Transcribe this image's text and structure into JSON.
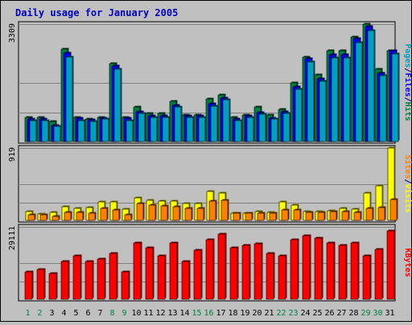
{
  "chart_data": {
    "type": "bar",
    "title": "Daily usage for January 2005",
    "categories": [
      "1",
      "2",
      "3",
      "4",
      "5",
      "6",
      "7",
      "8",
      "9",
      "10",
      "11",
      "12",
      "13",
      "14",
      "15",
      "16",
      "17",
      "18",
      "19",
      "20",
      "21",
      "22",
      "23",
      "24",
      "25",
      "26",
      "27",
      "28",
      "29",
      "30",
      "31"
    ],
    "weekend_days": [
      "1",
      "2",
      "8",
      "9",
      "15",
      "16",
      "22",
      "23",
      "29",
      "30"
    ],
    "panels": [
      {
        "id": "top",
        "ymax_label": "3309",
        "ylim": [
          0,
          3309
        ],
        "axis_labels": [
          {
            "text": "Pages",
            "color": "#00a0c0"
          },
          {
            "text": "/",
            "color": "#000080"
          },
          {
            "text": "Files",
            "color": "#0000ff"
          },
          {
            "text": "/",
            "color": "#000080"
          },
          {
            "text": "Hits",
            "color": "#008040"
          }
        ],
        "series": [
          {
            "name": "Hits",
            "color": "#008040",
            "values": [
              682,
              682,
              568,
              2605,
              682,
              626,
              682,
              2207,
              682,
              967,
              796,
              796,
              1137,
              739,
              739,
              1194,
              1307,
              682,
              739,
              967,
              739,
              910,
              1649,
              2389,
              1876,
              2559,
              2559,
              2957,
              3309,
              2047,
              2559
            ]
          },
          {
            "name": "Files",
            "color": "#0000ff",
            "values": [
              625,
              625,
              455,
              2502,
              648,
              602,
              665,
              2138,
              648,
              842,
              716,
              716,
              1029,
              722,
              722,
              1058,
              1228,
              625,
              722,
              819,
              665,
              842,
              1535,
              2332,
              1762,
              2445,
              2445,
              2900,
              3241,
              1933,
              2561
            ]
          },
          {
            "name": "Pages",
            "color": "#00a0c0",
            "values": [
              580,
              580,
              420,
              2390,
              600,
              560,
              630,
              2050,
              600,
              800,
              680,
              680,
              980,
              690,
              690,
              1000,
              1170,
              580,
              690,
              780,
              630,
              800,
              1480,
              2250,
              1700,
              2360,
              2360,
              2790,
              3130,
              1860,
              2470
            ]
          }
        ]
      },
      {
        "id": "mid",
        "ymax_label": "919",
        "ylim": [
          0,
          919
        ],
        "axis_labels": [
          {
            "text": "Sites",
            "color": "#ff8000"
          },
          {
            "text": "/",
            "color": "#000080"
          },
          {
            "text": "Visits",
            "color": "#ffff00"
          }
        ],
        "series": [
          {
            "name": "Visits",
            "color": "#ffff00",
            "values": [
              115,
              80,
              100,
              170,
              155,
              160,
              230,
              230,
              140,
              290,
              260,
              250,
              240,
              210,
              210,
              370,
              345,
              95,
              95,
              115,
              105,
              230,
              195,
              115,
              115,
              125,
              150,
              140,
              345,
              435,
              919
            ]
          },
          {
            "name": "Sites",
            "color": "#ff8000",
            "values": [
              70,
              70,
              55,
              100,
              100,
              90,
              150,
              135,
              70,
              215,
              190,
              185,
              170,
              155,
              150,
              250,
              255,
              95,
              95,
              95,
              90,
              135,
              130,
              100,
              105,
              115,
              115,
              100,
              155,
              160,
              270
            ]
          }
        ]
      },
      {
        "id": "bot",
        "ymax_label": "29111",
        "ylim": [
          0,
          29111
        ],
        "axis_labels": [
          {
            "text": "KBytes",
            "color": "#ff0000"
          }
        ],
        "series": [
          {
            "name": "KBytes",
            "color": "#ff0000",
            "values": [
              10900,
              11900,
              10400,
              15200,
              17400,
              15200,
              16300,
              18500,
              10900,
              22800,
              20700,
              17400,
              22800,
              15200,
              19600,
              23900,
              26100,
              20700,
              21700,
              22200,
              18500,
              17400,
              23900,
              25600,
              24500,
              22800,
              21700,
              22800,
              17400,
              20100,
              27600
            ]
          }
        ]
      }
    ]
  }
}
